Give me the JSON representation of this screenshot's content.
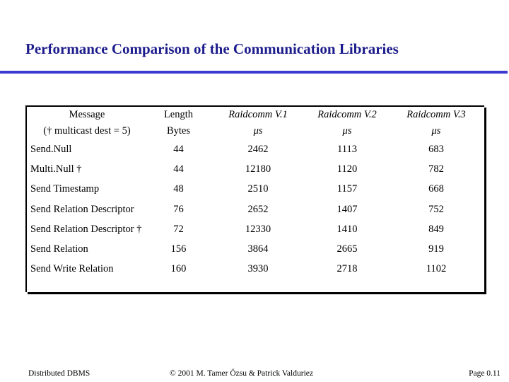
{
  "slide": {
    "title": "Performance Comparison of the Communication Libraries"
  },
  "table": {
    "headers": {
      "message": "Message",
      "message_sub": "(† multicast dest = 5)",
      "length": "Length",
      "length_sub": "Bytes",
      "v1": "Raidcomm V.1",
      "v2": "Raidcomm V.2",
      "v3": "Raidcomm V.3",
      "unit": "μs"
    },
    "rows": [
      {
        "message": "Send.Null",
        "length": "44",
        "v1": "2462",
        "v2": "1113",
        "v3": "683"
      },
      {
        "message": "Multi.Null †",
        "length": "44",
        "v1": "12180",
        "v2": "1120",
        "v3": "782"
      },
      {
        "message": "Send Timestamp",
        "length": "48",
        "v1": "2510",
        "v2": "1157",
        "v3": "668"
      },
      {
        "message": "Send Relation Descriptor",
        "length": "76",
        "v1": "2652",
        "v2": "1407",
        "v3": "752"
      },
      {
        "message": "Send Relation Descriptor †",
        "length": "72",
        "v1": "12330",
        "v2": "1410",
        "v3": "849"
      },
      {
        "message": "Send Relation",
        "length": "156",
        "v1": "3864",
        "v2": "2665",
        "v3": "919"
      },
      {
        "message": "Send Write Relation",
        "length": "160",
        "v1": "3930",
        "v2": "2718",
        "v3": "1102"
      }
    ]
  },
  "footer": {
    "left": "Distributed DBMS",
    "center": "© 2001 M. Tamer Özsu & Patrick Valduriez",
    "right": "Page 0.11"
  }
}
